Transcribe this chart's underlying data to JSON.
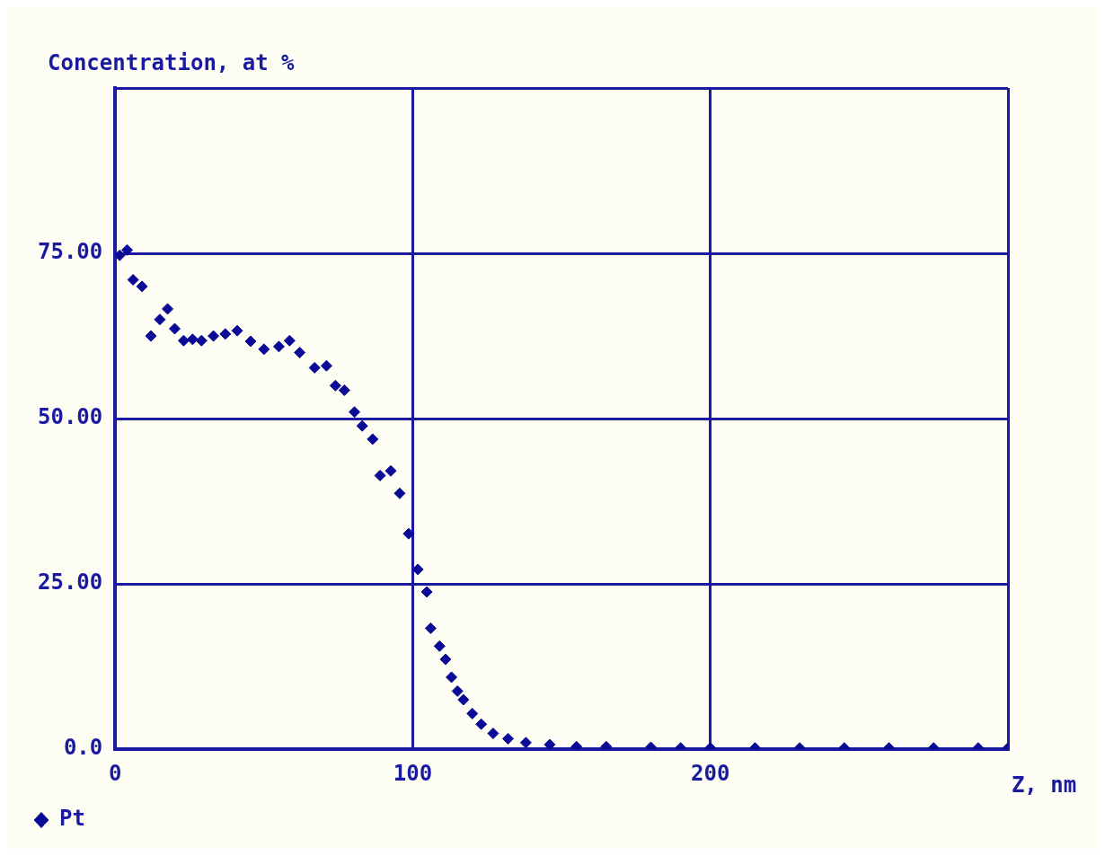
{
  "chart_data": {
    "type": "scatter",
    "ylabel": "Concentration, at %",
    "xlabel": "Z, nm",
    "xlim": [
      0,
      300
    ],
    "xticks": [
      0,
      100,
      200,
      {
        "value": 300,
        "label": null
      }
    ],
    "ylim": [
      0,
      100
    ],
    "yticks": [
      {
        "value": 0,
        "label": "0.0"
      },
      {
        "value": 25,
        "label": "25.00"
      },
      {
        "value": 50,
        "label": "50.00"
      },
      {
        "value": 75,
        "label": "75.00"
      },
      {
        "value": 100,
        "label": null
      }
    ],
    "grid": true,
    "marker": "diamond",
    "legend": "bottom left",
    "series": [
      {
        "name": "Pt",
        "color": "#0a0a96",
        "x": [
          1.5,
          4,
          6,
          9,
          12,
          15,
          17.6,
          20,
          23,
          26,
          29,
          33,
          37,
          41,
          45.5,
          50,
          55,
          58.6,
          62,
          67,
          71,
          74,
          77,
          80.4,
          83,
          86.5,
          89,
          92.6,
          95.6,
          98.6,
          101.7,
          104.7,
          106,
          109,
          111,
          113,
          115,
          117,
          120,
          123,
          127,
          132,
          138,
          146,
          155,
          165,
          180,
          190,
          200,
          215,
          230,
          245,
          260,
          275,
          290,
          300
        ],
        "values": [
          74.7,
          75.5,
          71,
          70,
          62.5,
          65,
          66.6,
          63.6,
          61.8,
          62,
          61.8,
          62.5,
          62.8,
          63.3,
          61.7,
          60.5,
          60.9,
          61.8,
          60,
          57.7,
          58,
          55,
          54.3,
          51,
          48.9,
          46.9,
          41.4,
          42.1,
          38.7,
          32.6,
          27.2,
          23.8,
          18.3,
          15.6,
          13.6,
          10.9,
          8.8,
          7.5,
          5.4,
          3.8,
          2.4,
          1.6,
          1,
          0.7,
          0.4,
          0.4,
          0.3,
          0.2,
          0.2,
          0.2,
          0.2,
          0.2,
          0.2,
          0.2,
          0.2,
          0.2
        ]
      }
    ]
  }
}
